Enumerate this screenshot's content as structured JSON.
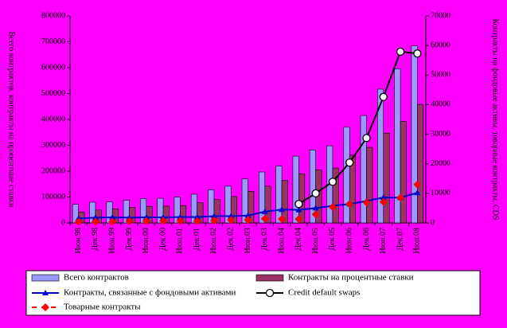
{
  "chart_data": {
    "type": "bar-line",
    "y_label": "Всего контрактов, контракты на процентные ставки",
    "y2_label": "Контракты на фондовые активы, товарные контракты, CDS",
    "categories": [
      "Июн.98",
      "Дек.98",
      "Июн.99",
      "Дек.99",
      "Июн.00",
      "Дек.00",
      "Июн.01",
      "Дек.01",
      "Июн.02",
      "Дек.02",
      "Июн.03",
      "Дек.03",
      "Июн.04",
      "Дек.04",
      "Июн.05",
      "Дек.05",
      "Июн.06",
      "Дек.06",
      "Июн.07",
      "Дек.07",
      "Июн.08"
    ],
    "ylim": [
      0,
      800000
    ],
    "yticks": [
      0,
      100000,
      200000,
      300000,
      400000,
      500000,
      600000,
      700000,
      800000
    ],
    "y2lim": [
      0,
      70000
    ],
    "y2ticks": [
      0,
      10000,
      20000,
      30000,
      40000,
      50000,
      60000,
      70000
    ],
    "grid": false,
    "series": [
      {
        "name": "Всего контрактов",
        "kind": "bar",
        "color": "#9999ff",
        "values": [
          72000,
          80000,
          81000,
          88000,
          94000,
          95000,
          100000,
          111000,
          128000,
          142000,
          170000,
          197000,
          220000,
          258000,
          282000,
          298000,
          370000,
          415000,
          517000,
          596000,
          684000
        ]
      },
      {
        "name": "Контракты на процентные ставки",
        "kind": "bar",
        "color": "#993366",
        "values": [
          42000,
          50000,
          54000,
          60000,
          64000,
          65000,
          67000,
          78000,
          90000,
          102000,
          122000,
          142000,
          164000,
          190000,
          205000,
          212000,
          262000,
          292000,
          347000,
          393000,
          458000
        ]
      },
      {
        "name": "Контракты, связанные с фондовыми активами",
        "kind": "line",
        "marker": "triangle",
        "color": "#0000cc",
        "axis": "y2",
        "values": [
          1500,
          1800,
          1900,
          1800,
          1900,
          1900,
          2000,
          2000,
          2300,
          2300,
          2500,
          3800,
          4500,
          4400,
          5000,
          5800,
          6400,
          7400,
          8600,
          8500,
          10200
        ]
      },
      {
        "name": "Credit default swaps",
        "kind": "line",
        "marker": "circle",
        "color": "#000000",
        "axis": "y2",
        "values": [
          null,
          null,
          null,
          null,
          null,
          null,
          null,
          null,
          null,
          null,
          null,
          null,
          null,
          6400,
          10000,
          13900,
          20400,
          28700,
          42600,
          57900,
          57300
        ]
      },
      {
        "name": "Товарные контракты",
        "kind": "points",
        "marker": "diamond",
        "color": "#ff0000",
        "axis": "y2",
        "values": [
          400,
          400,
          400,
          600,
          600,
          700,
          700,
          600,
          800,
          1000,
          1000,
          1400,
          1300,
          1300,
          2900,
          5400,
          6400,
          6900,
          7100,
          8500,
          13000
        ]
      }
    ]
  }
}
